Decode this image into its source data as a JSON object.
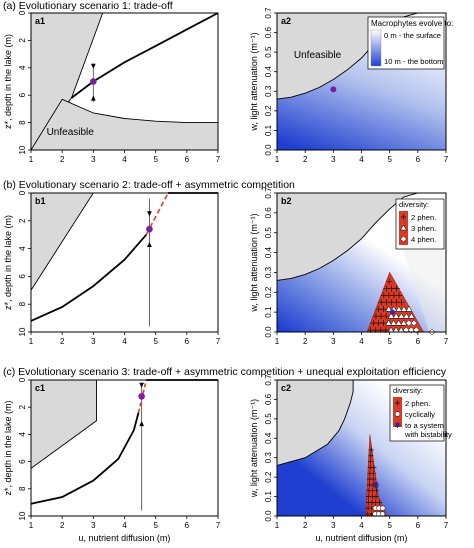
{
  "scenarios": [
    {
      "title": "(a) Evolutionary scenario 1: trade-off"
    },
    {
      "title": "(b) Evolutionary scenario 2: trade-off + asymmetric competition"
    },
    {
      "title": "(c) Evolutionary scenario 3: trade-off + asymmetric competition + unequal exploitation efficiency"
    }
  ],
  "axes": {
    "left_ylabel": "z*, depth in the lake (m)",
    "right_ylabel": "w, light attenuation (m⁻¹)",
    "xlabel": "u, nutrient diffusion (m)",
    "left_xticks": [
      "1",
      "2",
      "3",
      "4",
      "5",
      "6",
      "7"
    ],
    "left_yticks": [
      "0",
      "2",
      "4",
      "6",
      "8",
      "10"
    ],
    "right_xticks": [
      "1",
      "2",
      "3",
      "4",
      "5",
      "6",
      "7"
    ],
    "right_yticks": [
      "0.0",
      "0.1",
      "0.2",
      "0.3",
      "0.4",
      "0.5",
      "0.6",
      "0.7"
    ]
  },
  "chart_data": [
    {
      "id": "a1",
      "type": "line",
      "panel_label": "a1",
      "xlim": [
        1,
        7
      ],
      "ylim": [
        10,
        0
      ],
      "region_label": "Unfeasible",
      "series": [
        {
          "x": [
            2.3,
            3.0,
            4.0,
            5.0,
            6.0,
            7.0
          ],
          "y": [
            6.2,
            5.0,
            3.6,
            2.4,
            1.2,
            0.0
          ]
        }
      ],
      "unfeasible_upper": {
        "x": [
          1.0,
          2.3,
          3.3,
          1.0
        ],
        "y": [
          10.0,
          6.2,
          0.0,
          0.0
        ]
      },
      "unfeasible_lower": {
        "x": [
          1.0,
          2.0,
          3.0,
          4.0,
          5.0,
          6.0,
          7.0
        ],
        "y": [
          10.0,
          6.3,
          7.3,
          7.7,
          7.9,
          8.0,
          8.0
        ]
      },
      "singular_point": {
        "x": 3.0,
        "y": 5.0
      },
      "vertical_line": {
        "x": 3.0,
        "y": [
          3.7,
          6.5
        ]
      }
    },
    {
      "id": "a2",
      "type": "heatmap",
      "panel_label": "a2",
      "xlim": [
        1,
        7
      ],
      "ylim": [
        0,
        0.7
      ],
      "region_label": "Unfeasible",
      "legend": {
        "title": "Macrophytes evolve to:",
        "top": "0 m - the surface",
        "bottom": "10 m - the bottom",
        "top_color": "#ffffff",
        "bottom_color": "#1f3fd0"
      },
      "boundary": {
        "x": [
          1.0,
          1.5,
          2.0,
          2.5,
          3.0,
          3.5,
          4.0,
          4.5,
          5.0,
          5.5,
          6.0,
          7.0
        ],
        "y": [
          0.26,
          0.27,
          0.29,
          0.32,
          0.36,
          0.41,
          0.47,
          0.55,
          0.62,
          0.68,
          0.7,
          0.7
        ]
      },
      "point": {
        "x": 3.0,
        "y": 0.31
      }
    },
    {
      "id": "b1",
      "type": "line",
      "panel_label": "b1",
      "xlim": [
        1,
        7
      ],
      "ylim": [
        10,
        0
      ],
      "series": [
        {
          "x": [
            1.0,
            2.0,
            3.0,
            4.0,
            4.7
          ],
          "y": [
            9.2,
            8.2,
            6.7,
            4.8,
            3.0
          ]
        },
        {
          "x": [
            5.4,
            7.0
          ],
          "y": [
            0.0,
            0.0
          ]
        }
      ],
      "dashed_segment": {
        "x": [
          4.7,
          5.4
        ],
        "y": [
          3.0,
          0.0
        ],
        "color": "#e8382a"
      },
      "unfeasible": {
        "x": [
          1.0,
          3.0,
          1.0
        ],
        "y": [
          7.0,
          0.0,
          0.0
        ]
      },
      "singular_point": {
        "x": 4.8,
        "y": 2.6
      },
      "vertical_line": {
        "x": 4.8,
        "y": [
          0.0,
          10.0
        ]
      }
    },
    {
      "id": "b2",
      "type": "heatmap",
      "panel_label": "b2",
      "xlim": [
        1,
        7
      ],
      "ylim": [
        0,
        0.7
      ],
      "legend": {
        "title": "diversity:",
        "items": [
          "2 phen.",
          "3 phen.",
          "4 phen."
        ],
        "fill": "#d93a25"
      },
      "boundary": {
        "x": [
          1.0,
          1.5,
          2.0,
          2.5,
          3.0,
          3.5,
          4.0,
          4.5,
          5.0,
          5.5,
          6.0,
          7.0
        ],
        "y": [
          0.26,
          0.27,
          0.29,
          0.32,
          0.36,
          0.41,
          0.47,
          0.55,
          0.62,
          0.68,
          0.7,
          0.7
        ]
      },
      "diversity_region": {
        "x": [
          4.2,
          5.0,
          6.2
        ],
        "y": [
          0.0,
          0.3,
          0.0
        ]
      },
      "point": {
        "x": 5.1,
        "y": 0.1
      }
    },
    {
      "id": "c1",
      "type": "line",
      "panel_label": "c1",
      "xlim": [
        1,
        7
      ],
      "ylim": [
        10,
        0
      ],
      "series": [
        {
          "x": [
            1.0,
            2.0,
            3.0,
            3.8,
            4.3,
            4.45
          ],
          "y": [
            9.1,
            8.6,
            7.4,
            5.8,
            3.7,
            2.4
          ]
        },
        {
          "x": [
            4.7,
            7.0
          ],
          "y": [
            0.0,
            0.0
          ]
        }
      ],
      "dashed_segment": {
        "x": [
          4.45,
          4.7
        ],
        "y": [
          2.4,
          0.0
        ],
        "color": "#e8382a"
      },
      "unfeasible": {
        "x": [
          1.0,
          3.1,
          3.1,
          1.0
        ],
        "y": [
          6.5,
          3.0,
          0.0,
          0.0
        ]
      },
      "singular_point": {
        "x": 4.55,
        "y": 1.2
      },
      "vertical_line": {
        "x": 4.55,
        "y": [
          0.0,
          10.0
        ]
      }
    },
    {
      "id": "c2",
      "type": "heatmap",
      "panel_label": "c2",
      "xlim": [
        1,
        7
      ],
      "ylim": [
        0,
        0.7
      ],
      "legend": {
        "title": "diversity:",
        "items": [
          "2 phen.",
          "cyclically",
          "to a system with bistability"
        ],
        "fill": "#d93a25"
      },
      "boundary": {
        "x": [
          1.0,
          2.0,
          2.8,
          3.2,
          3.4,
          3.6,
          3.7,
          3.7
        ],
        "y": [
          0.26,
          0.3,
          0.37,
          0.44,
          0.5,
          0.58,
          0.64,
          0.7
        ]
      },
      "diversity_region": {
        "x": [
          4.15,
          4.3,
          4.6,
          4.9
        ],
        "y": [
          0.0,
          0.42,
          0.1,
          0.0
        ]
      },
      "point": {
        "x": 4.5,
        "y": 0.16
      }
    }
  ]
}
